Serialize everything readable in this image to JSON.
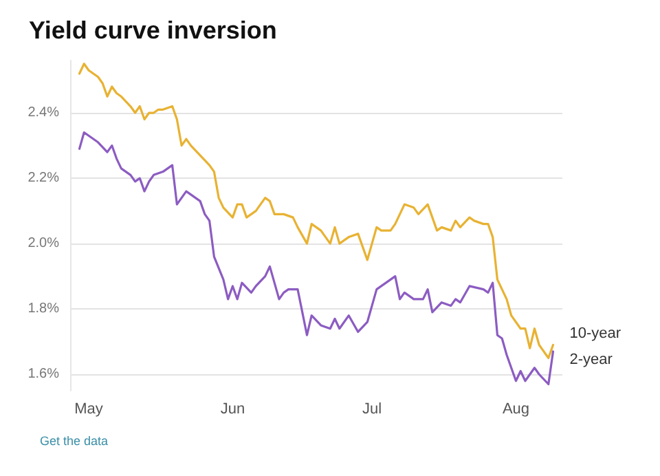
{
  "chart_data": {
    "type": "line",
    "title": "Yield curve inversion",
    "annotations": [
      "Get the data"
    ],
    "xlim": [
      "--04-27",
      "--08-11"
    ],
    "xticks": [
      {
        "value": "--05-01",
        "label": "May"
      },
      {
        "value": "--06-01",
        "label": "Jun"
      },
      {
        "value": "--07-01",
        "label": "Jul"
      },
      {
        "value": "--08-01",
        "label": "Aug"
      }
    ],
    "yticks": [
      {
        "value": 1.6,
        "label": "1.6%"
      },
      {
        "value": 1.8,
        "label": "1.8%"
      },
      {
        "value": 2.0,
        "label": "2.0%"
      },
      {
        "value": 2.2,
        "label": "2.2%"
      },
      {
        "value": 2.4,
        "label": "2.4%"
      }
    ],
    "ylim": [
      1.55,
      2.56
    ],
    "grid": "y",
    "legend": false,
    "marker": "none",
    "line_style": "solid",
    "series": [
      {
        "name": "10-year",
        "color": "#e8b232",
        "x": [
          "--04-29",
          "--04-30",
          "--05-01",
          "--05-03",
          "--05-04",
          "--05-05",
          "--05-06",
          "--05-07",
          "--05-08",
          "--05-10",
          "--05-11",
          "--05-12",
          "--05-13",
          "--05-14",
          "--05-15",
          "--05-16",
          "--05-17",
          "--05-19",
          "--05-20",
          "--05-21",
          "--05-22",
          "--05-23",
          "--05-25",
          "--05-27",
          "--05-28",
          "--05-29",
          "--05-30",
          "--06-01",
          "--06-02",
          "--06-03",
          "--06-04",
          "--06-06",
          "--06-08",
          "--06-09",
          "--06-10",
          "--06-12",
          "--06-14",
          "--06-15",
          "--06-17",
          "--06-18",
          "--06-20",
          "--06-21",
          "--06-22",
          "--06-23",
          "--06-24",
          "--06-26",
          "--06-28",
          "--06-30",
          "--07-02",
          "--07-03",
          "--07-05",
          "--07-06",
          "--07-08",
          "--07-10",
          "--07-11",
          "--07-13",
          "--07-15",
          "--07-16",
          "--07-18",
          "--07-19",
          "--07-20",
          "--07-22",
          "--07-23",
          "--07-25",
          "--07-26",
          "--07-27",
          "--07-28",
          "--07-30",
          "--07-31",
          "--08-02",
          "--08-03",
          "--08-04",
          "--08-05",
          "--08-06",
          "--08-08",
          "--08-09"
        ],
        "values": [
          2.52,
          2.55,
          2.53,
          2.51,
          2.49,
          2.45,
          2.48,
          2.46,
          2.45,
          2.42,
          2.4,
          2.42,
          2.38,
          2.4,
          2.4,
          2.41,
          2.41,
          2.42,
          2.38,
          2.3,
          2.32,
          2.3,
          2.27,
          2.24,
          2.22,
          2.14,
          2.11,
          2.08,
          2.12,
          2.12,
          2.08,
          2.1,
          2.14,
          2.13,
          2.09,
          2.09,
          2.08,
          2.05,
          2.0,
          2.06,
          2.04,
          2.02,
          2.0,
          2.05,
          2.0,
          2.02,
          2.03,
          1.95,
          2.05,
          2.04,
          2.04,
          2.06,
          2.12,
          2.11,
          2.09,
          2.12,
          2.04,
          2.05,
          2.04,
          2.07,
          2.05,
          2.08,
          2.07,
          2.06,
          2.06,
          2.02,
          1.89,
          1.83,
          1.78,
          1.74,
          1.74,
          1.68,
          1.74,
          1.69,
          1.65,
          1.69
        ]
      },
      {
        "name": "2-year",
        "color": "#8c5cc2",
        "x": [
          "--04-29",
          "--04-30",
          "--05-01",
          "--05-03",
          "--05-05",
          "--05-06",
          "--05-07",
          "--05-08",
          "--05-10",
          "--05-11",
          "--05-12",
          "--05-13",
          "--05-14",
          "--05-15",
          "--05-17",
          "--05-18",
          "--05-19",
          "--05-20",
          "--05-22",
          "--05-23",
          "--05-25",
          "--05-26",
          "--05-27",
          "--05-28",
          "--05-30",
          "--05-31",
          "--06-01",
          "--06-02",
          "--06-03",
          "--06-05",
          "--06-06",
          "--06-08",
          "--06-09",
          "--06-11",
          "--06-12",
          "--06-13",
          "--06-15",
          "--06-16",
          "--06-17",
          "--06-18",
          "--06-20",
          "--06-22",
          "--06-23",
          "--06-24",
          "--06-26",
          "--06-28",
          "--06-30",
          "--07-02",
          "--07-04",
          "--07-06",
          "--07-07",
          "--07-08",
          "--07-10",
          "--07-12",
          "--07-13",
          "--07-14",
          "--07-16",
          "--07-18",
          "--07-19",
          "--07-20",
          "--07-22",
          "--07-25",
          "--07-26",
          "--07-27",
          "--07-28",
          "--07-29",
          "--07-30",
          "--08-01",
          "--08-02",
          "--08-03",
          "--08-05",
          "--08-06",
          "--08-08",
          "--08-09"
        ],
        "values": [
          2.29,
          2.34,
          2.33,
          2.31,
          2.28,
          2.3,
          2.26,
          2.23,
          2.21,
          2.19,
          2.2,
          2.16,
          2.19,
          2.21,
          2.22,
          2.23,
          2.24,
          2.12,
          2.16,
          2.15,
          2.13,
          2.09,
          2.07,
          1.96,
          1.89,
          1.83,
          1.87,
          1.83,
          1.88,
          1.85,
          1.87,
          1.9,
          1.93,
          1.83,
          1.85,
          1.86,
          1.86,
          1.79,
          1.72,
          1.78,
          1.75,
          1.74,
          1.77,
          1.74,
          1.78,
          1.73,
          1.76,
          1.86,
          1.88,
          1.9,
          1.83,
          1.85,
          1.83,
          1.83,
          1.86,
          1.79,
          1.82,
          1.81,
          1.83,
          1.82,
          1.87,
          1.86,
          1.85,
          1.88,
          1.72,
          1.71,
          1.66,
          1.58,
          1.61,
          1.58,
          1.62,
          1.6,
          1.57,
          1.67
        ]
      }
    ]
  }
}
